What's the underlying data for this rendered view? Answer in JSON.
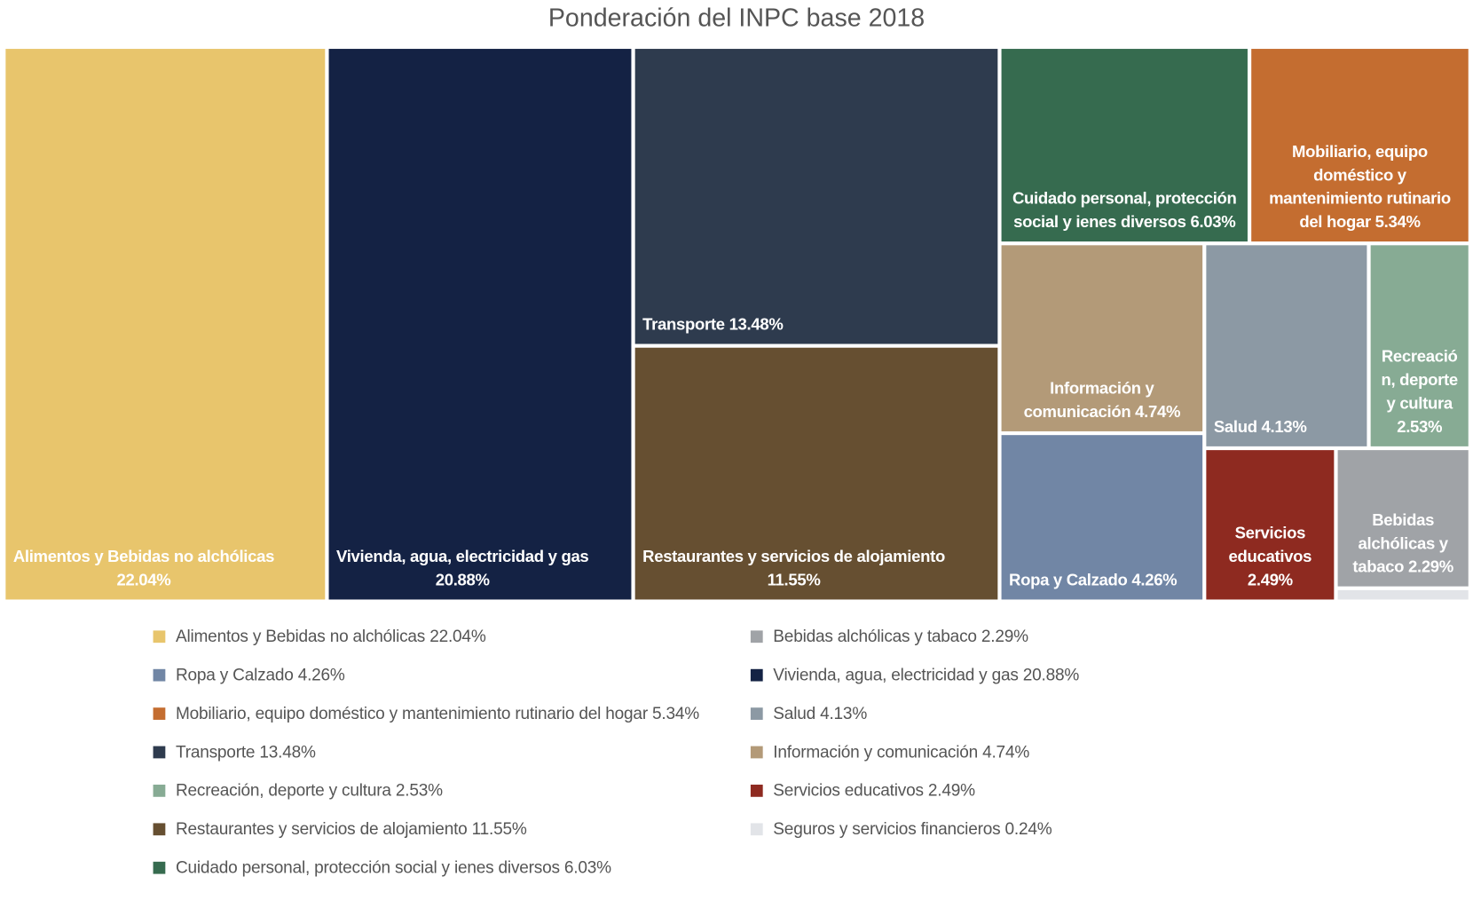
{
  "chart_data": {
    "type": "treemap",
    "title": "Ponderación del INPC base 2018",
    "unit": "%",
    "items": [
      {
        "name": "Alimentos y Bebidas no alchólicas",
        "value": 22.04,
        "value_label": "22.04%",
        "color": "#E8C56C"
      },
      {
        "name": "Vivienda, agua, electricidad y gas",
        "value": 20.88,
        "value_label": "20.88%",
        "color": "#142244"
      },
      {
        "name": "Transporte",
        "value": 13.48,
        "value_label": "13.48%",
        "color": "#2E3B4E"
      },
      {
        "name": "Restaurantes y servicios de alojamiento",
        "value": 11.55,
        "value_label": "11.55%",
        "color": "#664F31"
      },
      {
        "name": "Cuidado personal, protección social y ienes diversos",
        "value": 6.03,
        "value_label": "6.03%",
        "color": "#366B4F"
      },
      {
        "name": "Mobiliario, equipo doméstico y mantenimiento rutinario del hogar",
        "value": 5.34,
        "value_label": "5.34%",
        "color": "#C46D30"
      },
      {
        "name": "Información y comunicación",
        "value": 4.74,
        "value_label": "4.74%",
        "color": "#B39A78"
      },
      {
        "name": "Ropa y Calzado",
        "value": 4.26,
        "value_label": "4.26%",
        "color": "#7186A5"
      },
      {
        "name": "Salud",
        "value": 4.13,
        "value_label": "4.13%",
        "color": "#8C99A4"
      },
      {
        "name": "Recreación, deporte y cultura",
        "value": 2.53,
        "value_label": "2.53%",
        "color": "#87AB94"
      },
      {
        "name": "Servicios educativos",
        "value": 2.49,
        "value_label": "2.49%",
        "color": "#8E2A20"
      },
      {
        "name": "Bebidas alchólicas y tabaco",
        "value": 2.29,
        "value_label": "2.29%",
        "color": "#A0A3A7"
      },
      {
        "name": "Seguros y servicios financieros",
        "value": 0.24,
        "value_label": "0.24%",
        "color": "#E2E4E8"
      }
    ],
    "legend": {
      "placement": "bottom",
      "entries": [
        "Alimentos y Bebidas no alchólicas 22.04%",
        "Ropa y Calzado 4.26%",
        "Mobiliario, equipo doméstico y mantenimiento rutinario del hogar 5.34%",
        "Transporte 13.48%",
        "Recreación, deporte y cultura 2.53%",
        "Restaurantes y servicios de alojamiento 11.55%",
        "Cuidado personal, protección social y ienes diversos 6.03%",
        "Bebidas alchólicas y tabaco 2.29%",
        "Vivienda, agua, electricidad y gas 20.88%",
        "Salud 4.13%",
        "Información y comunicación 4.74%",
        "Servicios educativos  2.49%",
        "Seguros y servicios financieros 0.24%"
      ],
      "entry_colors": [
        "#E8C56C",
        "#7186A5",
        "#C46D30",
        "#2E3B4E",
        "#87AB94",
        "#664F31",
        "#366B4F",
        "#A0A3A7",
        "#142244",
        "#8C99A4",
        "#B39A78",
        "#8E2A20",
        "#E2E4E8"
      ]
    }
  }
}
